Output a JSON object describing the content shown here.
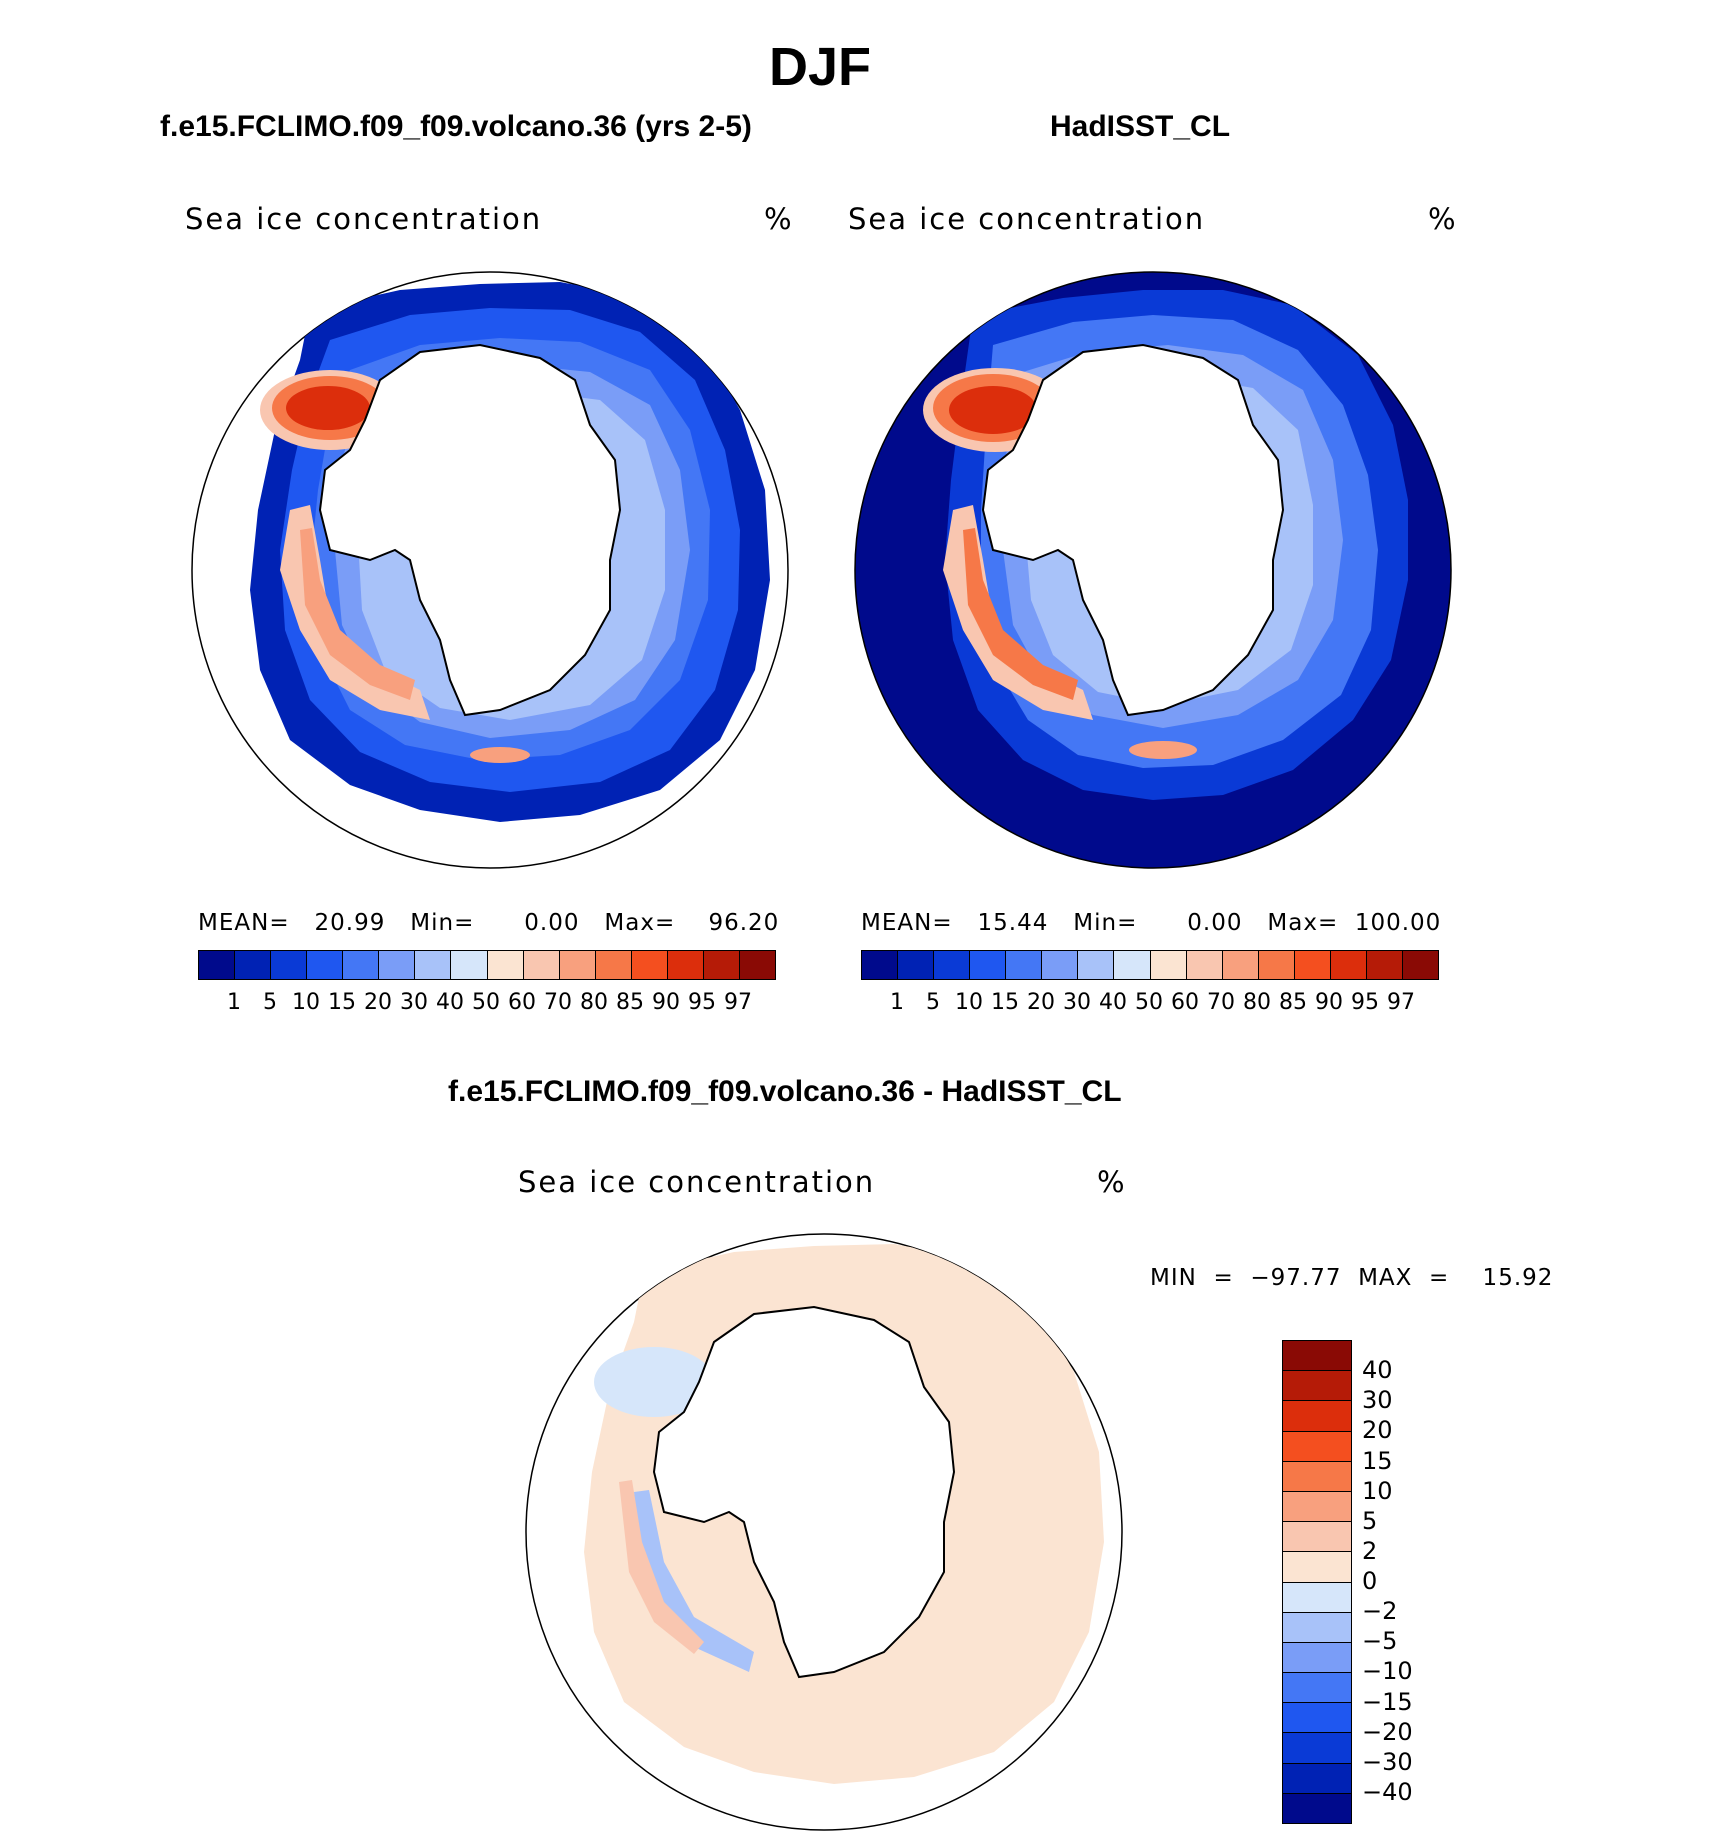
{
  "page": {
    "title": "DJF"
  },
  "panels": {
    "model": {
      "title": "f.e15.FCLIMO.f09_f09.volcano.36 (yrs 2-5)",
      "variable": "Sea ice concentration",
      "units": "%",
      "stats": "MEAN=   20.99   Min=      0.00   Max=    96.20"
    },
    "obs": {
      "title": "HadISST_CL",
      "variable": "Sea ice concentration",
      "units": "%",
      "stats": "MEAN=   15.44   Min=      0.00   Max=  100.00"
    },
    "diff": {
      "title": "f.e15.FCLIMO.f09_f09.volcano.36 - HadISST_CL",
      "variable": "Sea ice concentration",
      "units": "%",
      "stats": "MIN  =  −97.77  MAX  =    15.92"
    }
  },
  "colorbar_abs": {
    "colors": [
      "#000a8c",
      "#0022b4",
      "#0a3ad6",
      "#1f57f0",
      "#4477f5",
      "#7a9df7",
      "#a8c2f9",
      "#d6e6fa",
      "#fbe4d2",
      "#f9c6b0",
      "#f8a07e",
      "#f67848",
      "#f44f1f",
      "#dc2e0c",
      "#b51b07",
      "#8a0a05"
    ],
    "labels": [
      "1",
      "5",
      "10",
      "15",
      "20",
      "30",
      "40",
      "50",
      "60",
      "70",
      "80",
      "85",
      "90",
      "95",
      "97"
    ]
  },
  "colorbar_diff": {
    "colors": [
      "#8a0a05",
      "#b51b07",
      "#dc2e0c",
      "#f44f1f",
      "#f67848",
      "#f8a07e",
      "#f9c6b0",
      "#fbe4d2",
      "#d6e6fa",
      "#a8c2f9",
      "#7a9df7",
      "#4477f5",
      "#1f57f0",
      "#0a3ad6",
      "#0022b4",
      "#000a8c"
    ],
    "labels": [
      "40",
      "30",
      "20",
      "15",
      "10",
      "5",
      "2",
      "0",
      "−2",
      "−5",
      "−10",
      "−15",
      "−20",
      "−30",
      "−40"
    ]
  },
  "map_colors": {
    "deep": "#000a8c",
    "ice_bright": "#f67848",
    "ice_core": "#dc2e0c",
    "diff_pos": "#fbe4d2",
    "diff_neg": "#a8c2f9"
  }
}
